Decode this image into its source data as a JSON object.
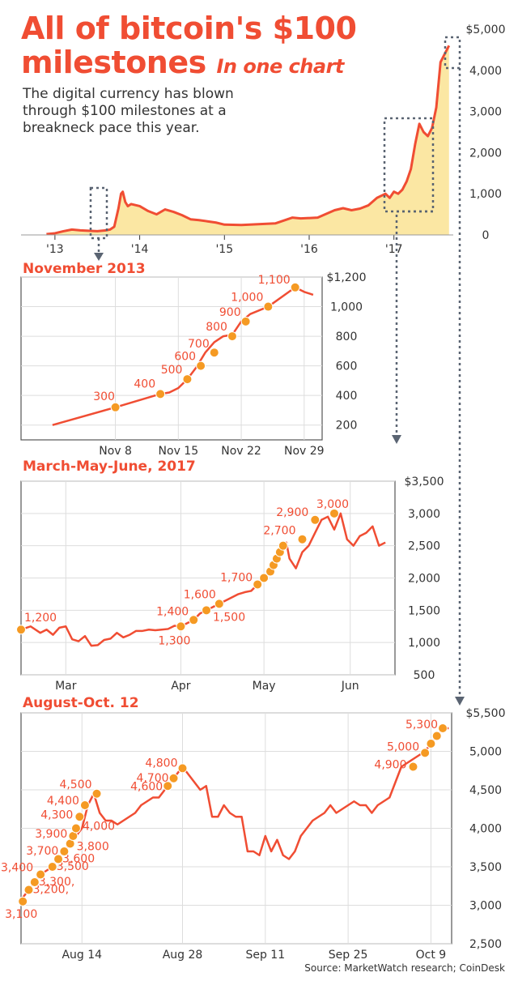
{
  "title": "All of bitcoin's $100",
  "title_line2": "milestones",
  "title_sub": "In one chart",
  "subtitle": "The digital currency has blown through $100 milestones at a breakneck pace this year.",
  "source": "Source: MarketWatch research; CoinDesk",
  "colors": {
    "accent": "#f04d33",
    "area": "#fbe7a3",
    "marker": "#f59a23",
    "connector": "#5a6472"
  },
  "chart_data": [
    {
      "type": "area",
      "title": "",
      "x_ticks": [
        "'13",
        "'14",
        "'15",
        "'16",
        "'17"
      ],
      "y_ticks": [
        "$5,000",
        "4,000",
        "3,000",
        "2,000",
        "1,000",
        "0"
      ],
      "ylim": [
        0,
        5000
      ],
      "x": [
        2013.0,
        2013.1,
        2013.2,
        2013.3,
        2013.4,
        2013.5,
        2013.6,
        2013.7,
        2013.75,
        2013.8,
        2013.85,
        2013.88,
        2013.9,
        2013.93,
        2013.96,
        2014.0,
        2014.1,
        2014.2,
        2014.3,
        2014.4,
        2014.5,
        2014.6,
        2014.7,
        2014.8,
        2014.9,
        2015.0,
        2015.1,
        2015.3,
        2015.5,
        2015.7,
        2015.9,
        2016.0,
        2016.2,
        2016.4,
        2016.5,
        2016.6,
        2016.7,
        2016.8,
        2016.9,
        2017.0,
        2017.05,
        2017.1,
        2017.15,
        2017.2,
        2017.25,
        2017.3,
        2017.35,
        2017.4,
        2017.45,
        2017.5,
        2017.55,
        2017.6,
        2017.65,
        2017.7,
        2017.75
      ],
      "y": [
        20,
        40,
        90,
        130,
        110,
        100,
        90,
        110,
        130,
        200,
        650,
        1000,
        1050,
        800,
        700,
        750,
        700,
        580,
        500,
        620,
        560,
        480,
        380,
        360,
        330,
        300,
        250,
        240,
        260,
        280,
        420,
        400,
        420,
        600,
        650,
        600,
        640,
        720,
        900,
        1000,
        900,
        1050,
        1000,
        1100,
        1300,
        1600,
        2200,
        2700,
        2500,
        2400,
        2600,
        3100,
        4200,
        4400,
        4600
      ]
    },
    {
      "type": "line",
      "title": "November 2013",
      "x_ticks": [
        "Nov 8",
        "Nov 15",
        "Nov 22",
        "Nov 29"
      ],
      "y_ticks": [
        "$1,200",
        "1,000",
        "800",
        "600",
        "400",
        "200"
      ],
      "ylim": [
        100,
        1200
      ],
      "x": [
        1,
        8,
        13,
        14,
        15,
        16,
        17,
        18,
        19,
        20,
        21,
        22,
        23,
        25,
        28,
        29,
        30
      ],
      "y": [
        200,
        320,
        410,
        420,
        450,
        510,
        590,
        690,
        760,
        800,
        810,
        900,
        950,
        1000,
        1130,
        1100,
        1080
      ],
      "milestones": [
        {
          "label": "300",
          "x": 8,
          "y": 320
        },
        {
          "label": "400",
          "x": 13,
          "y": 410
        },
        {
          "label": "500",
          "x": 16,
          "y": 510
        },
        {
          "label": "600",
          "x": 17.5,
          "y": 600
        },
        {
          "label": "700",
          "x": 19,
          "y": 690
        },
        {
          "label": "800",
          "x": 21,
          "y": 800
        },
        {
          "label": "900",
          "x": 22.5,
          "y": 900
        },
        {
          "label": "1,000",
          "x": 25,
          "y": 1000
        },
        {
          "label": "1,100",
          "x": 28,
          "y": 1130
        }
      ]
    },
    {
      "type": "line",
      "title": "March-May-June, 2017",
      "x_ticks": [
        "Mar",
        "Apr",
        "May",
        "Jun"
      ],
      "y_ticks": [
        "$3,500",
        "3,000",
        "2,500",
        "2,000",
        "1,500",
        "1,000",
        "500"
      ],
      "ylim": [
        500,
        3500
      ],
      "x": [
        0,
        3,
        6,
        8,
        10,
        12,
        14,
        16,
        18,
        20,
        22,
        24,
        26,
        28,
        30,
        32,
        34,
        36,
        38,
        40,
        42,
        44,
        46,
        48,
        50,
        52,
        54,
        56,
        58,
        60,
        62,
        64,
        66,
        68,
        70,
        72,
        74,
        76,
        78,
        79,
        80,
        81,
        82,
        83,
        84,
        86,
        88,
        90,
        92,
        94,
        96,
        98,
        100,
        102,
        104,
        106,
        108,
        110,
        112,
        114
      ],
      "y": [
        1200,
        1250,
        1150,
        1200,
        1120,
        1230,
        1250,
        1050,
        1020,
        1100,
        950,
        960,
        1040,
        1060,
        1150,
        1080,
        1120,
        1180,
        1180,
        1200,
        1190,
        1200,
        1210,
        1260,
        1250,
        1300,
        1350,
        1450,
        1500,
        1550,
        1600,
        1650,
        1700,
        1750,
        1780,
        1800,
        1900,
        2000,
        2100,
        2200,
        2300,
        2400,
        2500,
        2550,
        2300,
        2150,
        2400,
        2500,
        2700,
        2900,
        2950,
        2750,
        3000,
        2600,
        2500,
        2650,
        2700,
        2800,
        2500,
        2550
      ],
      "milestones": [
        {
          "label": "1,200",
          "x": 0,
          "y": 1200
        },
        {
          "label": "1,300",
          "x": 50,
          "y": 1250
        },
        {
          "label": "1,400",
          "x": 54,
          "y": 1350
        },
        {
          "label": "1,500",
          "x": 58,
          "y": 1500
        },
        {
          "label": "1,600",
          "x": 62,
          "y": 1600
        },
        {
          "label": "1,700",
          "x": 74,
          "y": 1900
        },
        {
          "label": "",
          "x": 76,
          "y": 2000
        },
        {
          "label": "",
          "x": 78,
          "y": 2100
        },
        {
          "label": "",
          "x": 79,
          "y": 2200
        },
        {
          "label": "",
          "x": 80,
          "y": 2300
        },
        {
          "label": "",
          "x": 81,
          "y": 2400
        },
        {
          "label": "",
          "x": 82,
          "y": 2500
        },
        {
          "label": "2,700",
          "x": 88,
          "y": 2600
        },
        {
          "label": "2,900",
          "x": 92,
          "y": 2900
        },
        {
          "label": "3,000",
          "x": 98,
          "y": 3000
        }
      ]
    },
    {
      "type": "line",
      "title": "August-Oct. 12",
      "x_ticks": [
        "Aug 14",
        "Aug 28",
        "Sep 11",
        "Sep 25",
        "Oct 9"
      ],
      "y_ticks": [
        "$5,500",
        "5,000",
        "4,500",
        "4,000",
        "3,500",
        "3,000",
        "2,500"
      ],
      "ylim": [
        2500,
        5500
      ],
      "x": [
        0,
        1,
        2,
        3,
        4,
        5,
        6,
        7,
        8,
        9,
        10,
        11,
        12,
        13,
        14,
        15,
        16,
        17,
        18,
        19,
        20,
        21,
        22,
        23,
        24,
        25,
        26,
        27,
        28,
        29,
        30,
        31,
        32,
        33,
        34,
        35,
        36,
        37,
        38,
        39,
        40,
        41,
        42,
        43,
        44,
        45,
        46,
        47,
        48,
        49,
        50,
        51,
        52,
        53,
        54,
        55,
        56,
        57,
        58,
        59,
        60,
        61,
        62,
        63,
        64,
        65,
        66,
        67,
        68,
        69,
        70,
        71,
        72
      ],
      "y": [
        3100,
        3200,
        3300,
        3400,
        3450,
        3500,
        3600,
        3700,
        3800,
        3900,
        4000,
        4300,
        4450,
        4200,
        4100,
        4100,
        4050,
        4100,
        4150,
        4200,
        4300,
        4350,
        4400,
        4400,
        4500,
        4600,
        4700,
        4800,
        4700,
        4600,
        4500,
        4550,
        4150,
        4150,
        4300,
        4200,
        4150,
        4150,
        3700,
        3700,
        3650,
        3900,
        3700,
        3850,
        3650,
        3600,
        3700,
        3900,
        4000,
        4100,
        4150,
        4200,
        4300,
        4200,
        4250,
        4300,
        4350,
        4300,
        4300,
        4200,
        4300,
        4350,
        4400,
        4600,
        4800,
        4850,
        4900,
        4950,
        5000,
        5100,
        5200,
        5300,
        5300
      ],
      "milestones": [
        {
          "label": "3,100",
          "x": 0,
          "y": 3050
        },
        {
          "label": "3,200,",
          "x": 1,
          "y": 3200
        },
        {
          "label": "3,300,",
          "x": 2,
          "y": 3300
        },
        {
          "label": "3,400",
          "x": 3,
          "y": 3400
        },
        {
          "label": "3,500",
          "x": 5,
          "y": 3500
        },
        {
          "label": "3,600",
          "x": 6,
          "y": 3600
        },
        {
          "label": "3,700",
          "x": 7,
          "y": 3700
        },
        {
          "label": "3,800",
          "x": 8,
          "y": 3800
        },
        {
          "label": "3,900",
          "x": 8.5,
          "y": 3900
        },
        {
          "label": "4,000",
          "x": 9,
          "y": 4000
        },
        {
          "label": "4,300",
          "x": 9.6,
          "y": 4150
        },
        {
          "label": "4,400",
          "x": 10.5,
          "y": 4300
        },
        {
          "label": "4,500",
          "x": 12.5,
          "y": 4450
        },
        {
          "label": "4,600",
          "x": 24.5,
          "y": 4550
        },
        {
          "label": "4,700",
          "x": 25.5,
          "y": 4650
        },
        {
          "label": "4,800",
          "x": 27,
          "y": 4780
        },
        {
          "label": "4,900",
          "x": 66,
          "y": 4800
        },
        {
          "label": "5,000",
          "x": 68,
          "y": 4980
        },
        {
          "label": "",
          "x": 69,
          "y": 5100
        },
        {
          "label": "",
          "x": 70,
          "y": 5200
        },
        {
          "label": "5,300",
          "x": 71,
          "y": 5300
        }
      ]
    }
  ]
}
